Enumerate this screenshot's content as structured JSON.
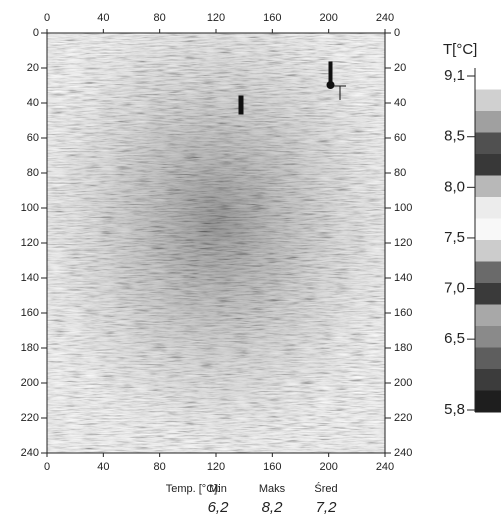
{
  "chart_data": {
    "type": "heatmap",
    "xlim": [
      0,
      240
    ],
    "ylim": [
      0,
      240
    ],
    "xticks": [
      0,
      40,
      80,
      120,
      160,
      200,
      240
    ],
    "yticks": [
      0,
      20,
      40,
      60,
      80,
      100,
      120,
      140,
      160,
      180,
      200,
      220,
      240
    ],
    "colorbar": {
      "title": "T[°C]",
      "lim": [
        5.8,
        9.1
      ],
      "ticks": [
        {
          "value": 9.1,
          "label": "9,1"
        },
        {
          "value": 8.5,
          "label": "8,5"
        },
        {
          "value": 8.0,
          "label": "8,0"
        },
        {
          "value": 7.5,
          "label": "7,5"
        },
        {
          "value": 7.0,
          "label": "7,0"
        },
        {
          "value": 6.5,
          "label": "6,5"
        },
        {
          "value": 5.8,
          "label": "5,8"
        }
      ],
      "colors": [
        "#ffffff",
        "#d0d0d0",
        "#a0a0a0",
        "#505050",
        "#383838",
        "#b8b8b8",
        "#ececec",
        "#f8f8f8",
        "#cccccc",
        "#6a6a6a",
        "#3a3a3a",
        "#a8a8a8",
        "#8a8a8a",
        "#5e5e5e",
        "#3c3c3c",
        "#1e1e1e"
      ]
    },
    "stats": {
      "title": "Temp. [°C]:",
      "categories": [
        "Min",
        "Maks",
        "Śred"
      ],
      "values": [
        6.2,
        8.2,
        7.2
      ],
      "value_labels": [
        "6,2",
        "8,2",
        "7,2"
      ]
    }
  }
}
